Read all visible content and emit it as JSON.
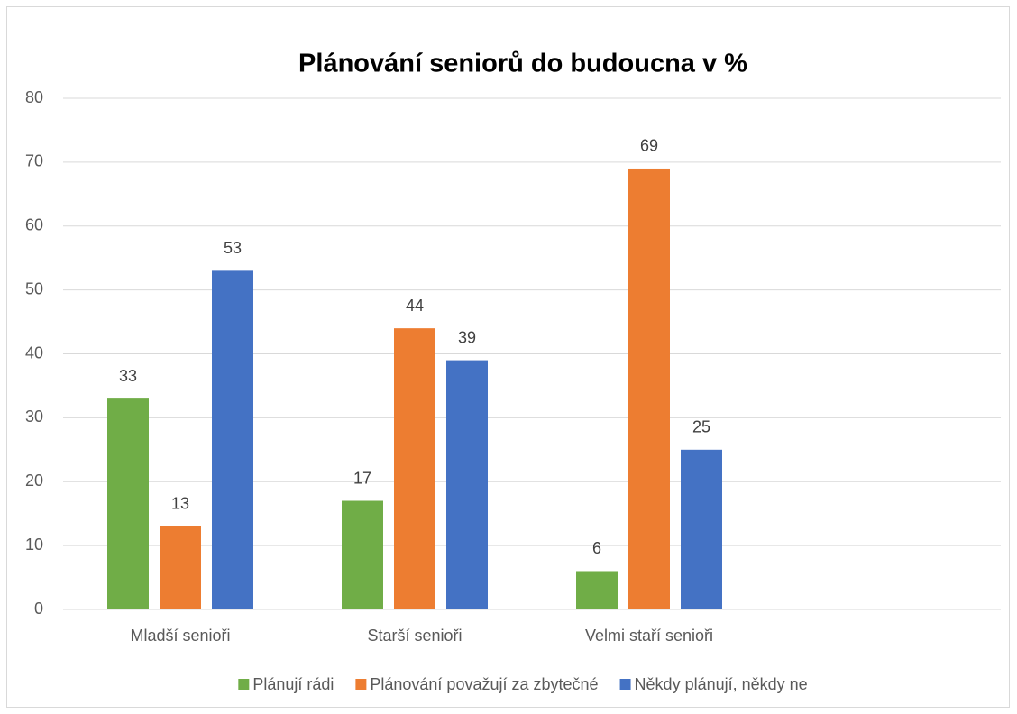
{
  "chart_data": {
    "type": "bar",
    "title": "Plánování seniorů do budoucna v %",
    "categories": [
      "Mladší senioři",
      "Starší senioři",
      "Velmi staří senioři",
      null
    ],
    "series": [
      {
        "name": "Plánují rádi",
        "color": "#70ad47",
        "values": [
          33,
          17,
          6,
          null
        ]
      },
      {
        "name": "Plánování považují za zbytečné",
        "color": "#ed7d31",
        "values": [
          13,
          44,
          69,
          null
        ]
      },
      {
        "name": "Někdy plánují, někdy ne",
        "color": "#4472c4",
        "values": [
          53,
          39,
          25,
          null
        ]
      }
    ],
    "ylim": [
      0,
      80
    ],
    "yticks": [
      0,
      10,
      20,
      30,
      40,
      50,
      60,
      70,
      80
    ],
    "grid": true,
    "legend": "bottom"
  }
}
